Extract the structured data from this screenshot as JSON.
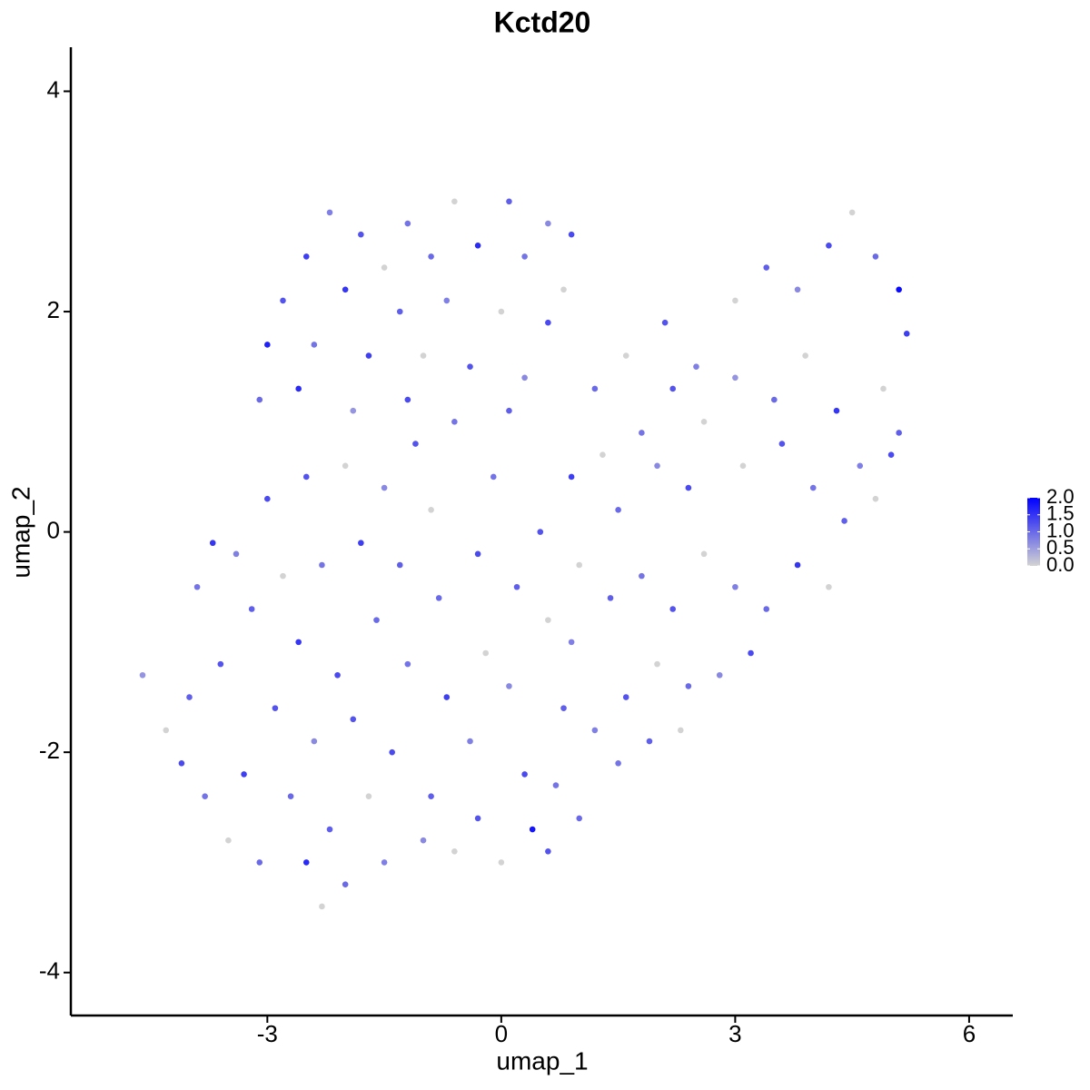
{
  "chart_data": {
    "type": "scatter",
    "title": "Kctd20",
    "x_label": "umap_1",
    "y_label": "umap_2",
    "xlim": [
      -5.52,
      6.56
    ],
    "ylim": [
      -4.39,
      4.4
    ],
    "xticks": [
      -3,
      0,
      3,
      6
    ],
    "yticks": [
      -4,
      -2,
      0,
      2,
      4
    ],
    "low_color": "#d3d3d3",
    "high_color": "#0000ff",
    "clim": [
      0,
      2
    ],
    "cticks": [
      {
        "value": 0,
        "label": "0.0"
      },
      0.5,
      {
        "value": 1,
        "label": "1.0"
      },
      1.5,
      {
        "value": 2,
        "label": "2.0"
      }
    ],
    "x": [
      -2.2,
      -1.8,
      -1.2,
      -0.6,
      0.1,
      0.6,
      0.9,
      -2.5,
      -1.5,
      -0.9,
      -0.3,
      0.3,
      0.8,
      -2.8,
      -2.0,
      -1.3,
      -0.7,
      0.0,
      0.6,
      -3.0,
      -2.4,
      -1.7,
      -1.0,
      -0.4,
      0.3,
      -3.1,
      -2.6,
      -1.9,
      -1.2,
      -0.6,
      0.1,
      1.2,
      1.6,
      2.1,
      2.5,
      3.0,
      3.4,
      3.8,
      4.2,
      4.5,
      4.8,
      5.1,
      5.2,
      4.9,
      5.1,
      4.6,
      4.3,
      3.9,
      3.5,
      3.0,
      2.6,
      2.2,
      1.8,
      1.3,
      0.9,
      1.5,
      2.0,
      2.4,
      3.1,
      3.6,
      4.0,
      4.4,
      4.8,
      5.0,
      3.8,
      4.2,
      3.4,
      3.0,
      2.6,
      2.2,
      1.8,
      1.4,
      1.0,
      3.2,
      2.8,
      2.4,
      2.0,
      1.6,
      1.2,
      2.3,
      1.9,
      1.5,
      -4.6,
      -4.3,
      -4.0,
      -4.1,
      -3.8,
      -3.6,
      -3.5,
      -3.3,
      -3.1,
      -3.2,
      -3.4,
      -3.0,
      -2.8,
      -2.6,
      -2.9,
      -2.7,
      -2.5,
      -2.3,
      -2.2,
      -2.4,
      -2.1,
      -2.3,
      -2.5,
      -2.0,
      -1.8,
      -1.6,
      -1.9,
      -1.7,
      -1.5,
      -1.4,
      -1.2,
      -1.3,
      -1.5,
      -1.1,
      -0.9,
      -0.8,
      -0.7,
      -0.9,
      -0.6,
      -0.3,
      -0.4,
      -0.2,
      -0.3,
      -0.1,
      0.2,
      0.1,
      0.3,
      0.0,
      0.4,
      0.6,
      0.7,
      0.8,
      0.6,
      0.5,
      0.9,
      1.0,
      -3.7,
      -3.9,
      -2.0,
      -1.0
    ],
    "values": [
      2.9,
      2.7,
      2.8,
      3.0,
      3.0,
      2.8,
      2.7,
      2.5,
      2.4,
      2.5,
      2.6,
      2.5,
      2.2,
      2.1,
      2.2,
      2.0,
      2.1,
      2.0,
      1.9,
      1.7,
      1.7,
      1.6,
      1.6,
      1.5,
      1.4,
      1.2,
      1.3,
      1.1,
      1.2,
      1.0,
      1.1,
      1.3,
      1.6,
      1.9,
      1.5,
      2.1,
      2.4,
      2.2,
      2.6,
      2.9,
      2.5,
      2.2,
      1.8,
      1.3,
      0.9,
      0.6,
      1.1,
      1.6,
      1.2,
      1.4,
      1.0,
      1.3,
      0.9,
      0.7,
      0.5,
      0.2,
      0.6,
      0.4,
      0.6,
      0.8,
      0.4,
      0.1,
      0.3,
      0.7,
      -0.3,
      -0.5,
      -0.7,
      -0.5,
      -0.2,
      -0.7,
      -0.4,
      -0.6,
      -0.3,
      -1.1,
      -1.3,
      -1.4,
      -1.2,
      -1.5,
      -1.8,
      -1.8,
      -1.9,
      -2.1,
      -1.3,
      -1.8,
      -1.5,
      -2.1,
      -2.4,
      -1.2,
      -2.8,
      -2.2,
      -3.0,
      -0.7,
      -0.2,
      0.3,
      -0.4,
      -1.0,
      -1.6,
      -2.4,
      -3.0,
      -3.4,
      -2.7,
      -1.9,
      -1.3,
      -0.3,
      0.5,
      0.6,
      -0.1,
      -0.8,
      -1.7,
      -2.4,
      -3.0,
      -2.0,
      -1.2,
      -0.3,
      0.4,
      0.8,
      0.2,
      -0.6,
      -1.5,
      -2.4,
      -2.9,
      -2.6,
      -1.9,
      -1.1,
      -0.2,
      0.5,
      -0.5,
      -1.4,
      -2.2,
      -3.0,
      -2.7,
      -2.9,
      -2.3,
      -1.6,
      -0.8,
      0.0,
      -1.0,
      -2.6,
      -0.1,
      -0.5,
      -3.2,
      -2.8
    ],
    "expression": [
      0.8,
      1.2,
      0.9,
      0,
      1.1,
      0.7,
      1.3,
      1.4,
      0,
      1.0,
      1.6,
      0.9,
      0,
      1.2,
      1.5,
      1.1,
      0.8,
      0,
      1.3,
      1.7,
      0.9,
      1.4,
      0,
      1.2,
      0.7,
      1.0,
      1.6,
      0.6,
      1.3,
      0.9,
      1.1,
      1.0,
      0,
      1.2,
      0.8,
      0,
      1.1,
      0.7,
      1.3,
      0,
      1.0,
      1.9,
      1.4,
      0,
      1.1,
      0.8,
      1.5,
      0,
      1.0,
      0.6,
      0,
      1.2,
      0.9,
      0,
      1.4,
      1.0,
      0.7,
      1.3,
      0,
      1.2,
      0.9,
      1.1,
      0,
      1.3,
      1.5,
      0,
      1.0,
      0.8,
      0,
      1.2,
      0.9,
      1.1,
      0,
      1.3,
      0.7,
      1.0,
      0,
      1.2,
      0.8,
      0,
      1.1,
      0.9,
      0.6,
      0,
      1.1,
      1.3,
      0.9,
      1.2,
      0,
      1.4,
      1.0,
      1.1,
      0.8,
      1.3,
      0,
      1.5,
      1.2,
      1.0,
      1.6,
      0,
      1.1,
      0.7,
      1.3,
      0.9,
      1.2,
      0,
      1.4,
      1.0,
      1.2,
      0,
      0.8,
      1.3,
      0.9,
      1.1,
      0.7,
      1.2,
      0,
      1.0,
      1.4,
      1.1,
      0,
      1.2,
      0.8,
      0,
      1.3,
      0.9,
      1.1,
      0.7,
      1.3,
      0,
      1.8,
      1.2,
      0.9,
      1.1,
      0,
      1.2,
      0.8,
      1.0,
      1.5,
      0.9,
      1.0,
      0.7
    ]
  }
}
